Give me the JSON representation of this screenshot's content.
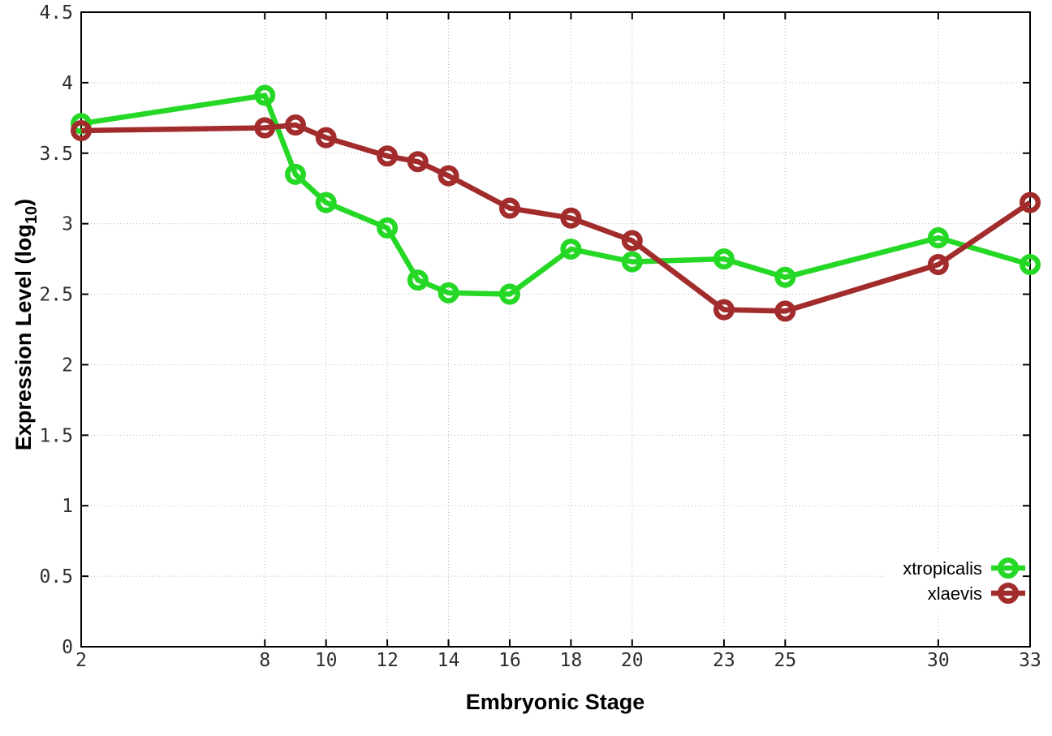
{
  "chart_data": {
    "type": "line",
    "title": "",
    "xlabel": "Embryonic Stage",
    "ylabel": "Expression Level (log10)",
    "ylabel_parts": {
      "pre": "Expression Level (log",
      "sub": "10",
      "post": ")"
    },
    "xlim": [
      2,
      33
    ],
    "ylim": [
      0,
      4.5
    ],
    "x_ticks": [
      2,
      8,
      10,
      12,
      14,
      16,
      18,
      20,
      23,
      25,
      30,
      33
    ],
    "y_ticks": [
      0,
      0.5,
      1,
      1.5,
      2,
      2.5,
      3,
      3.5,
      4,
      4.5
    ],
    "grid": true,
    "legend_position": "bottom-right-inside",
    "x": [
      2,
      8,
      9,
      10,
      12,
      13,
      14,
      16,
      18,
      20,
      23,
      25,
      30,
      33
    ],
    "series": [
      {
        "name": "xtropicalis",
        "color": "#25d825",
        "marker": "open-circle",
        "values": [
          3.71,
          3.91,
          3.35,
          3.15,
          2.97,
          2.6,
          2.51,
          2.5,
          2.82,
          2.73,
          2.75,
          2.62,
          2.9,
          2.71
        ]
      },
      {
        "name": "xlaevis",
        "color": "#a22b2b",
        "marker": "open-circle",
        "values": [
          3.66,
          3.68,
          3.7,
          3.61,
          3.48,
          3.44,
          3.34,
          3.11,
          3.04,
          2.88,
          2.39,
          2.38,
          2.71,
          3.15
        ]
      }
    ]
  },
  "styles": {
    "background": "#ffffff",
    "grid_color": "#b5b5b5",
    "axis_color": "#000000",
    "tick_label_color": "#2e2e2e"
  }
}
